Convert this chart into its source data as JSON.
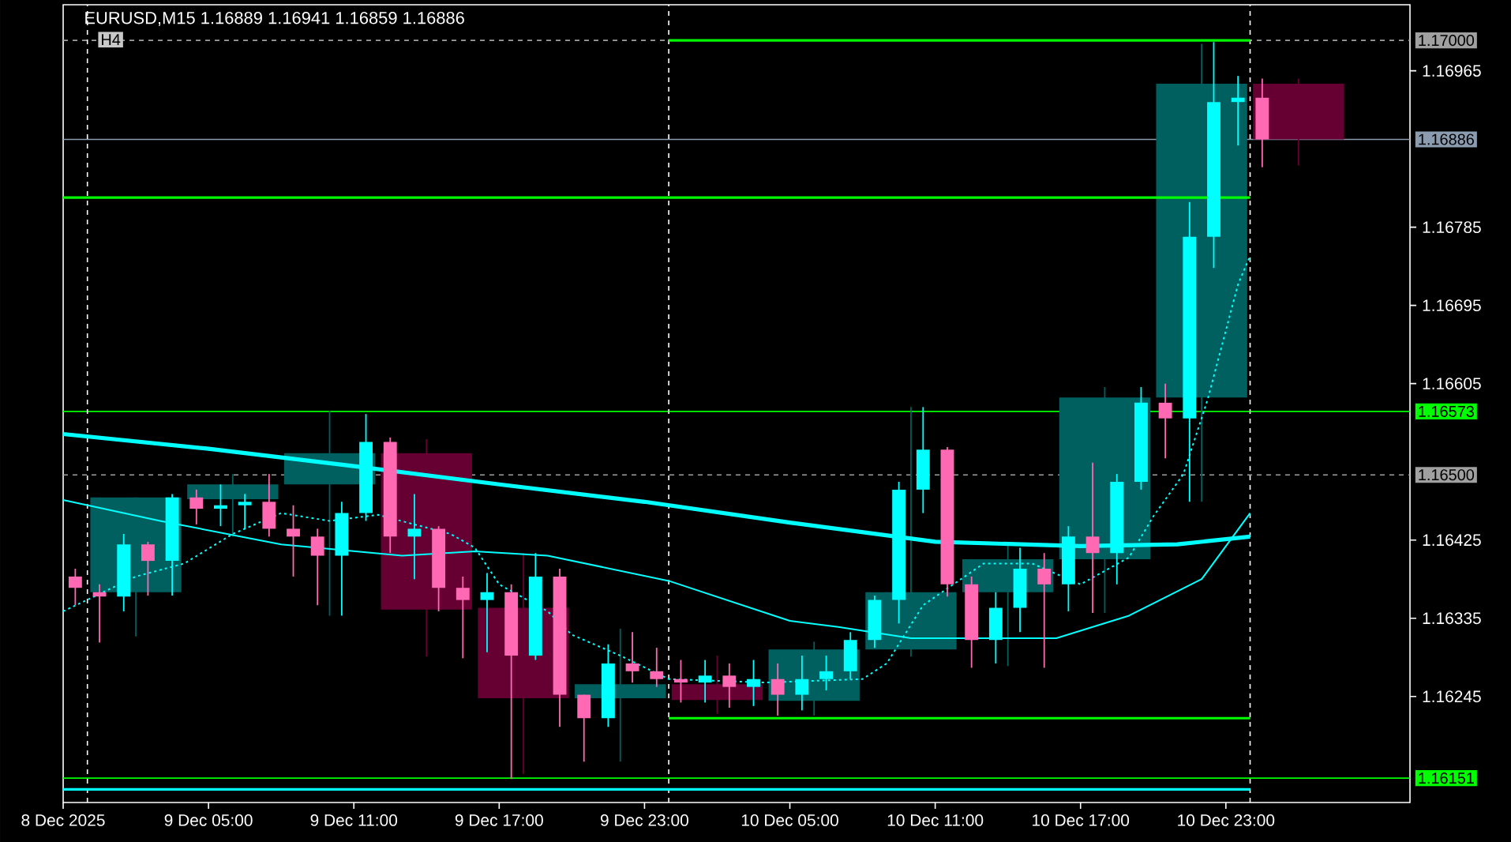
{
  "chart_data": {
    "type": "candlestick",
    "title": "EURUSD,M15  1.16889 1.16941 1.16859 1.16886",
    "annotations": [
      "H4"
    ],
    "xlim": [
      "2025-12-08T23:00",
      "2025-12-11T06:36"
    ],
    "ylim": [
      1.16123,
      1.17041
    ],
    "xticks": [
      {
        "value": "2025-12-08T23:00",
        "label": "8 Dec 2025"
      },
      {
        "value": "2025-12-09T05:00",
        "label": "9 Dec 05:00"
      },
      {
        "value": "2025-12-09T11:00",
        "label": "9 Dec 11:00"
      },
      {
        "value": "2025-12-09T17:00",
        "label": "9 Dec 17:00"
      },
      {
        "value": "2025-12-09T23:00",
        "label": "9 Dec 23:00"
      },
      {
        "value": "2025-12-10T05:00",
        "label": "10 Dec 05:00"
      },
      {
        "value": "2025-12-10T11:00",
        "label": "10 Dec 11:00"
      },
      {
        "value": "2025-12-10T17:00",
        "label": "10 Dec 17:00"
      },
      {
        "value": "2025-12-10T23:00",
        "label": "10 Dec 23:00"
      }
    ],
    "yticks": [
      1.16965,
      1.16785,
      1.16695,
      1.16605,
      1.16425,
      1.16335,
      1.16245
    ],
    "ref_lines": [
      {
        "axis": "y",
        "value": 1.17,
        "label": "1.17000",
        "color": "#a0a0a0",
        "line_style": "dashed"
      },
      {
        "axis": "y",
        "value": 1.16886,
        "label": "1.16886",
        "color": "#8c9cb0",
        "line_style": "solid"
      },
      {
        "axis": "y",
        "value": 1.16573,
        "label": "1.16573",
        "color": "#00ff00",
        "line_style": "solid"
      },
      {
        "axis": "y",
        "value": 1.165,
        "label": "1.16500",
        "color": "#a0a0a0",
        "line_style": "dashed"
      },
      {
        "axis": "y",
        "value": 1.16151,
        "label": "1.16151",
        "color": "#00ff00",
        "line_style": "solid"
      },
      {
        "axis": "x",
        "value": "2025-12-09T00:00",
        "color": "#ffffff",
        "line_style": "dashed"
      },
      {
        "axis": "x",
        "value": "2025-12-10T00:00",
        "color": "#ffffff",
        "line_style": "dashed"
      },
      {
        "axis": "x",
        "value": "2025-12-11T00:00",
        "color": "#ffffff",
        "line_style": "dashed"
      }
    ],
    "series": [
      {
        "x": [
          "2025-12-09T02:00",
          "2025-12-09T06:00",
          "2025-12-09T10:00",
          "2025-12-09T14:00",
          "2025-12-09T18:00",
          "2025-12-09T22:00",
          "2025-12-10T02:00",
          "2025-12-10T06:00",
          "2025-12-10T10:00",
          "2025-12-10T14:00",
          "2025-12-10T18:00",
          "2025-12-10T22:00",
          "2025-12-11T02:00"
        ],
        "ohlc": [
          [
            1.16365,
            1.16474,
            1.16314,
            1.16474
          ],
          [
            1.16472,
            1.16501,
            1.16429,
            1.16489
          ],
          [
            1.16489,
            1.16574,
            1.16338,
            1.16525
          ],
          [
            1.16525,
            1.16541,
            1.16291,
            1.16345
          ],
          [
            1.16347,
            1.1641,
            1.16156,
            1.16243
          ],
          [
            1.16243,
            1.16323,
            1.1617,
            1.16259
          ],
          [
            1.16259,
            1.16292,
            1.16225,
            1.16241
          ],
          [
            1.1624,
            1.16308,
            1.16223,
            1.16299
          ],
          [
            1.16299,
            1.16578,
            1.16291,
            1.16365
          ],
          [
            1.16365,
            1.1642,
            1.1628,
            1.16403
          ],
          [
            1.16403,
            1.16601,
            1.16341,
            1.16589
          ],
          [
            1.16589,
            1.16996,
            1.16469,
            1.1695
          ],
          [
            1.1695,
            1.16956,
            1.16856,
            1.16886
          ]
        ],
        "colors": [
          "#005f5f",
          "#005f5f",
          "#005f5f",
          "#660033",
          "#660033",
          "#005f5f",
          "#660033",
          "#005f5f",
          "#005f5f",
          "#005f5f",
          "#005f5f",
          "#005f5f",
          "#660033"
        ]
      },
      {
        "type": "line",
        "color": "#00ffff",
        "x": [
          "2025-12-08T23:00",
          "2025-12-09T05:00",
          "2025-12-09T11:00",
          "2025-12-09T17:00",
          "2025-12-09T23:00",
          "2025-12-10T05:00",
          "2025-12-10T11:00",
          "2025-12-10T17:00",
          "2025-12-10T21:00",
          "2025-12-11T00:00"
        ],
        "values": [
          1.16547,
          1.1653,
          1.1651,
          1.16489,
          1.16469,
          1.16445,
          1.16423,
          1.16418,
          1.1642,
          1.16429
        ]
      },
      {
        "type": "line",
        "color": "#00ffff",
        "x": [
          "2025-12-08T23:00",
          "2025-12-09T03:00",
          "2025-12-09T08:00",
          "2025-12-09T13:00",
          "2025-12-09T16:00",
          "2025-12-09T19:00",
          "2025-12-10T00:00",
          "2025-12-10T05:00",
          "2025-12-10T07:00",
          "2025-12-10T10:00",
          "2025-12-10T16:00",
          "2025-12-10T19:00",
          "2025-12-10T22:00",
          "2025-12-11T00:00"
        ],
        "values": [
          1.16471,
          1.16447,
          1.1642,
          1.16407,
          1.16412,
          1.16407,
          1.16378,
          1.16332,
          1.16325,
          1.16312,
          1.16312,
          1.16338,
          1.1638,
          1.16456
        ]
      },
      {
        "type": "line",
        "color": "#00ffff",
        "line_style": "dotted",
        "x": [
          "2025-12-08T23:00",
          "2025-12-09T02:00",
          "2025-12-09T04:00",
          "2025-12-09T06:00",
          "2025-12-09T08:00",
          "2025-12-09T10:00",
          "2025-12-09T12:00",
          "2025-12-09T15:00",
          "2025-12-09T16:00",
          "2025-12-09T17:00",
          "2025-12-09T19:00",
          "2025-12-09T20:00",
          "2025-12-09T22:00",
          "2025-12-10T00:00",
          "2025-12-10T04:00",
          "2025-12-10T08:00",
          "2025-12-10T09:00",
          "2025-12-10T10:30",
          "2025-12-10T11:30",
          "2025-12-10T13:00",
          "2025-12-10T15:00",
          "2025-12-10T17:00",
          "2025-12-10T19:00",
          "2025-12-10T20:00",
          "2025-12-10T21:15",
          "2025-12-10T22:15",
          "2025-12-10T23:30",
          "2025-12-11T00:00"
        ],
        "values": [
          1.16343,
          1.16383,
          1.16398,
          1.16432,
          1.16456,
          1.16447,
          1.16454,
          1.16432,
          1.16416,
          1.16374,
          1.16343,
          1.16316,
          1.16292,
          1.16265,
          1.16261,
          1.16265,
          1.16283,
          1.1635,
          null,
          1.16398,
          1.16398,
          1.16374,
          1.16405,
          1.16452,
          1.16501,
          1.16587,
          1.16719,
          1.16752
        ]
      },
      {
        "type": "line",
        "color": "#00ff00",
        "x": [
          "2025-12-10T00:00",
          "2025-12-11T00:00"
        ],
        "values": [
          1.17,
          1.17
        ]
      },
      {
        "type": "line",
        "color": "#00ff00",
        "x": [
          "2025-12-08T23:00",
          "2025-12-11T00:00"
        ],
        "values": [
          1.16819,
          1.16819
        ]
      },
      {
        "type": "line",
        "color": "#00ff00",
        "x": [
          "2025-12-10T00:00",
          "2025-12-11T00:00"
        ],
        "values": [
          1.1622,
          1.1622
        ]
      },
      {
        "type": "line",
        "color": "#00ffff",
        "x": [
          "2025-12-08T23:00",
          "2025-12-11T00:00"
        ],
        "values": [
          1.16138,
          1.16138
        ]
      },
      {
        "x": [
          "2025-12-08T23:30",
          "2025-12-09T00:30",
          "2025-12-09T01:30",
          "2025-12-09T02:30",
          "2025-12-09T03:30",
          "2025-12-09T04:30",
          "2025-12-09T05:30",
          "2025-12-09T06:30",
          "2025-12-09T07:30",
          "2025-12-09T08:30",
          "2025-12-09T09:30",
          "2025-12-09T10:30",
          "2025-12-09T11:30",
          "2025-12-09T12:30",
          "2025-12-09T13:30",
          "2025-12-09T14:30",
          "2025-12-09T15:30",
          "2025-12-09T16:30",
          "2025-12-09T17:30",
          "2025-12-09T18:30",
          "2025-12-09T19:30",
          "2025-12-09T20:30",
          "2025-12-09T21:30",
          "2025-12-09T22:30",
          "2025-12-09T23:30",
          "2025-12-10T00:30",
          "2025-12-10T01:30",
          "2025-12-10T02:30",
          "2025-12-10T03:30",
          "2025-12-10T04:30",
          "2025-12-10T05:30",
          "2025-12-10T06:30",
          "2025-12-10T07:30",
          "2025-12-10T08:30",
          "2025-12-10T09:30",
          "2025-12-10T10:30",
          "2025-12-10T11:30",
          "2025-12-10T12:30",
          "2025-12-10T13:30",
          "2025-12-10T14:30",
          "2025-12-10T15:30",
          "2025-12-10T16:30",
          "2025-12-10T17:30",
          "2025-12-10T18:30",
          "2025-12-10T19:30",
          "2025-12-10T20:30",
          "2025-12-10T21:30",
          "2025-12-10T22:30",
          "2025-12-10T23:30",
          "2025-12-11T00:30"
        ],
        "ohlc": [
          [
            1.16383,
            1.16392,
            1.1635,
            1.1637
          ],
          [
            1.16365,
            1.16374,
            1.16307,
            1.1636
          ],
          [
            1.1636,
            1.16432,
            1.16343,
            1.1642
          ],
          [
            1.1642,
            1.16423,
            1.16361,
            1.16401
          ],
          [
            1.16401,
            1.16478,
            1.16361,
            1.16474
          ],
          [
            1.16474,
            1.16483,
            1.16443,
            1.16461
          ],
          [
            1.16461,
            1.16489,
            1.16441,
            1.16465
          ],
          [
            1.16465,
            1.16478,
            1.16438,
            1.16469
          ],
          [
            1.16469,
            1.16501,
            1.16429,
            1.16438
          ],
          [
            1.16438,
            1.16465,
            1.16383,
            1.16429
          ],
          [
            1.16429,
            1.16438,
            1.1635,
            1.16407
          ],
          [
            1.16407,
            1.16469,
            1.16338,
            1.16456
          ],
          [
            1.16456,
            1.1657,
            1.16447,
            1.16538
          ],
          [
            1.16538,
            1.16543,
            1.1641,
            1.16429
          ],
          [
            1.16429,
            1.16478,
            1.1638,
            1.16438
          ],
          [
            1.16438,
            1.16441,
            1.16343,
            1.1637
          ],
          [
            1.1637,
            1.16383,
            1.16289,
            1.16356
          ],
          [
            1.16356,
            1.16387,
            1.16296,
            1.16365
          ],
          [
            1.16365,
            1.16374,
            1.1615,
            1.16292
          ],
          [
            1.16292,
            1.1641,
            1.16287,
            1.16383
          ],
          [
            1.16383,
            1.16392,
            1.1621,
            1.16247
          ],
          [
            1.16247,
            1.16247,
            1.1617,
            1.1622
          ],
          [
            1.1622,
            1.16305,
            1.1621,
            1.16283
          ],
          [
            1.16283,
            1.16319,
            1.16261,
            1.16274
          ],
          [
            1.16274,
            1.16301,
            1.16256,
            1.16265
          ],
          [
            1.16265,
            1.16287,
            1.16238,
            1.16261
          ],
          [
            1.16261,
            1.16287,
            1.16238,
            1.16269
          ],
          [
            1.16269,
            1.16283,
            1.16232,
            1.16256
          ],
          [
            1.16256,
            1.16287,
            1.16234,
            1.16265
          ],
          [
            1.16265,
            1.16283,
            1.16223,
            1.16247
          ],
          [
            1.16247,
            1.16292,
            1.16229,
            1.16265
          ],
          [
            1.16265,
            1.16292,
            1.16252,
            1.16274
          ],
          [
            1.16274,
            1.16319,
            1.16265,
            1.1631
          ],
          [
            1.1631,
            1.16361,
            1.16301,
            1.16356
          ],
          [
            1.16356,
            1.16492,
            1.16329,
            1.16483
          ],
          [
            1.16483,
            1.16578,
            1.16456,
            1.16529
          ],
          [
            1.16529,
            1.16532,
            1.1636,
            1.16374
          ],
          [
            1.16374,
            1.16383,
            1.16278,
            1.1631
          ],
          [
            1.1631,
            1.16365,
            1.16283,
            1.16347
          ],
          [
            1.16347,
            1.16416,
            1.16319,
            1.16392
          ],
          [
            1.16392,
            1.1641,
            1.16278,
            1.16374
          ],
          [
            1.16374,
            1.16441,
            1.16343,
            1.16429
          ],
          [
            1.16429,
            1.16514,
            1.16341,
            1.1641
          ],
          [
            1.1641,
            1.16501,
            1.16374,
            1.16492
          ],
          [
            1.16492,
            1.16601,
            1.16483,
            1.16583
          ],
          [
            1.16583,
            1.16605,
            1.16519,
            1.16565
          ],
          [
            1.16565,
            1.16814,
            1.16469,
            1.16774
          ],
          [
            1.16774,
            1.16998,
            1.16738,
            1.16929
          ],
          [
            1.16929,
            1.16959,
            1.16879,
            1.16934
          ],
          [
            1.16934,
            1.16956,
            1.16854,
            1.16886
          ]
        ],
        "colors": [
          "#ff69b4",
          "#ff69b4",
          "#00ffff",
          "#ff69b4",
          "#00ffff",
          "#ff69b4",
          "#00ffff",
          "#00ffff",
          "#ff69b4",
          "#ff69b4",
          "#ff69b4",
          "#00ffff",
          "#00ffff",
          "#ff69b4",
          "#00ffff",
          "#ff69b4",
          "#ff69b4",
          "#00ffff",
          "#ff69b4",
          "#00ffff",
          "#ff69b4",
          "#ff69b4",
          "#00ffff",
          "#ff69b4",
          "#ff69b4",
          "#ff69b4",
          "#00ffff",
          "#ff69b4",
          "#00ffff",
          "#ff69b4",
          "#00ffff",
          "#00ffff",
          "#00ffff",
          "#00ffff",
          "#00ffff",
          "#00ffff",
          "#ff69b4",
          "#ff69b4",
          "#00ffff",
          "#00ffff",
          "#ff69b4",
          "#00ffff",
          "#ff69b4",
          "#00ffff",
          "#00ffff",
          "#ff69b4",
          "#00ffff",
          "#00ffff",
          "#00ffff",
          "#ff69b4"
        ]
      }
    ]
  }
}
